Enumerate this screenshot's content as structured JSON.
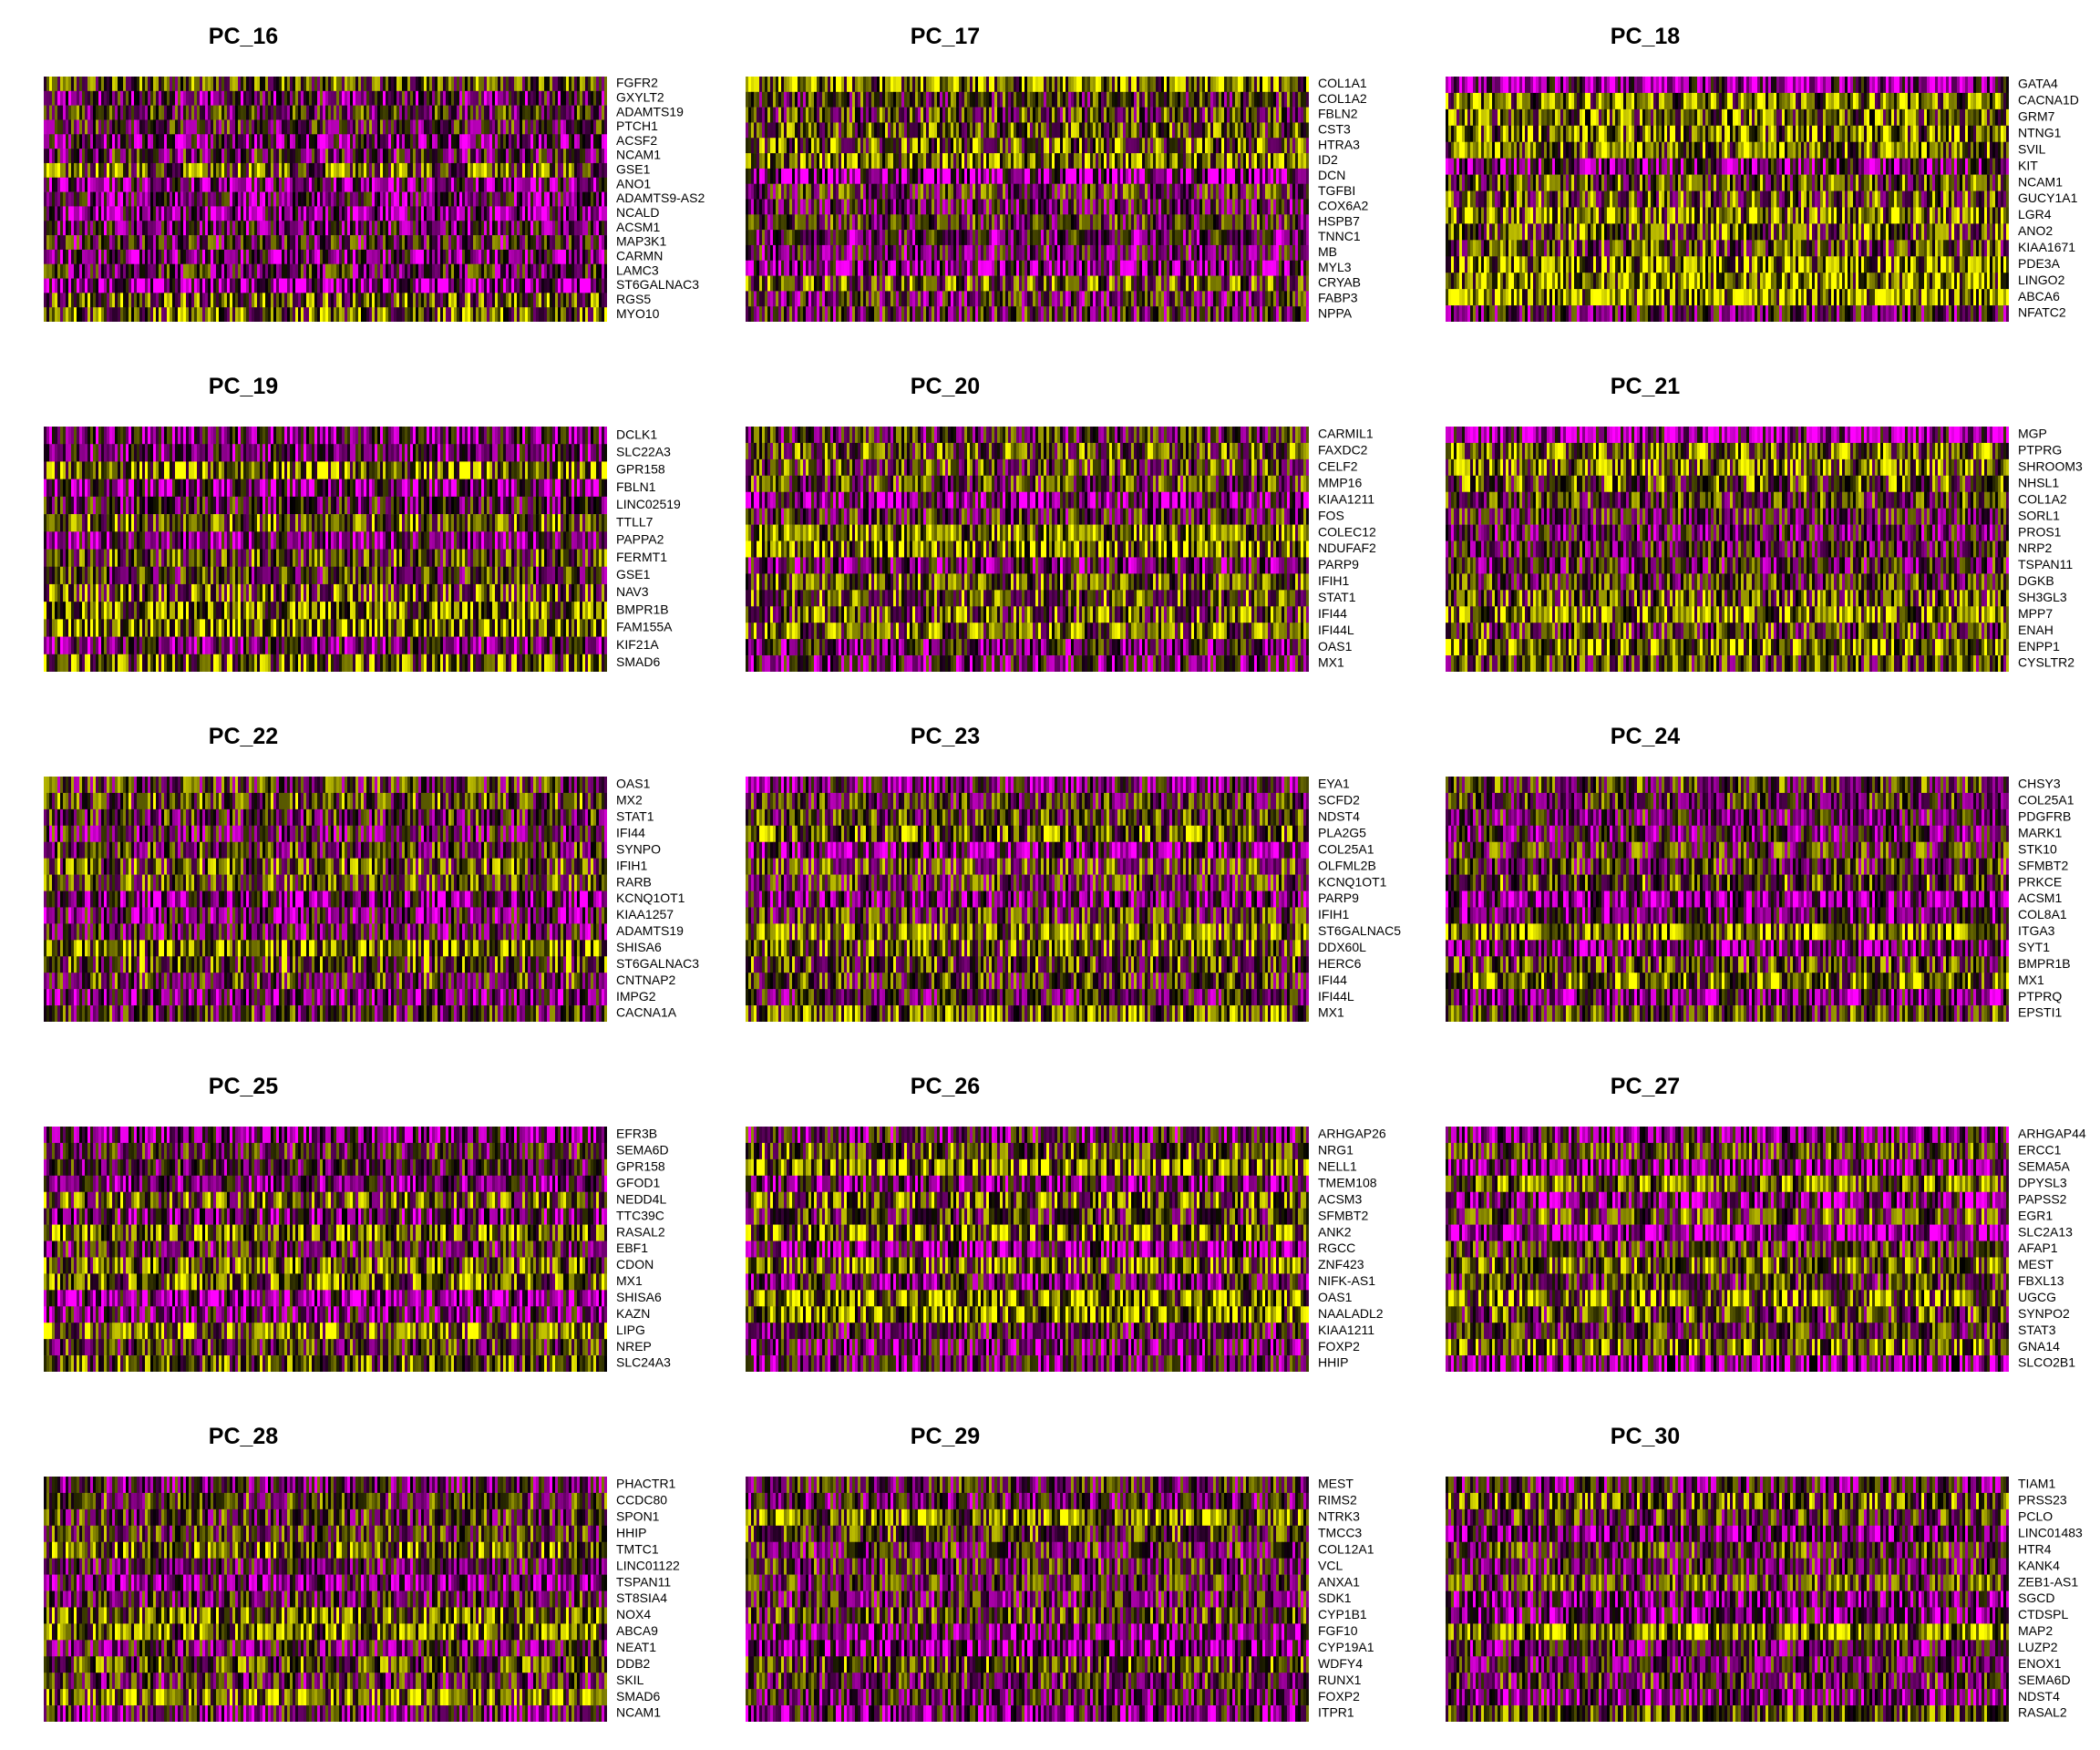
{
  "chart_data": [
    {
      "type": "heatmap",
      "title": "PC_16",
      "rows": [
        "FGFR2",
        "GXYLT2",
        "ADAMTS19",
        "PTCH1",
        "ACSF2",
        "NCAM1",
        "GSE1",
        "ANO1",
        "ADAMTS9-AS2",
        "NCALD",
        "ACSM1",
        "MAP3K1",
        "CARMN",
        "LAMC3",
        "ST6GALNAC3",
        "RGS5",
        "MYO10"
      ]
    },
    {
      "type": "heatmap",
      "title": "PC_17",
      "rows": [
        "COL1A1",
        "COL1A2",
        "FBLN2",
        "CST3",
        "HTRA3",
        "ID2",
        "DCN",
        "TGFBI",
        "COX6A2",
        "HSPB7",
        "TNNC1",
        "MB",
        "MYL3",
        "CRYAB",
        "FABP3",
        "NPPA"
      ]
    },
    {
      "type": "heatmap",
      "title": "PC_18",
      "rows": [
        "GATA4",
        "CACNA1D",
        "GRM7",
        "NTNG1",
        "SVIL",
        "KIT",
        "NCAM1",
        "GUCY1A1",
        "LGR4",
        "ANO2",
        "KIAA1671",
        "PDE3A",
        "LINGO2",
        "ABCA6",
        "NFATC2"
      ]
    },
    {
      "type": "heatmap",
      "title": "PC_19",
      "rows": [
        "DCLK1",
        "SLC22A3",
        "GPR158",
        "FBLN1",
        "LINC02519",
        "TTLL7",
        "PAPPA2",
        "FERMT1",
        "GSE1",
        "NAV3",
        "BMPR1B",
        "FAM155A",
        "KIF21A",
        "SMAD6"
      ]
    },
    {
      "type": "heatmap",
      "title": "PC_20",
      "rows": [
        "CARMIL1",
        "FAXDC2",
        "CELF2",
        "MMP16",
        "KIAA1211",
        "FOS",
        "COLEC12",
        "NDUFAF2",
        "PARP9",
        "IFIH1",
        "STAT1",
        "IFI44",
        "IFI44L",
        "OAS1",
        "MX1"
      ]
    },
    {
      "type": "heatmap",
      "title": "PC_21",
      "rows": [
        "MGP",
        "PTPRG",
        "SHROOM3",
        "NHSL1",
        "COL1A2",
        "SORL1",
        "PROS1",
        "NRP2",
        "TSPAN11",
        "DGKB",
        "SH3GL3",
        "MPP7",
        "ENAH",
        "ENPP1",
        "CYSLTR2"
      ]
    },
    {
      "type": "heatmap",
      "title": "PC_22",
      "rows": [
        "OAS1",
        "MX2",
        "STAT1",
        "IFI44",
        "SYNPO",
        "IFIH1",
        "RARB",
        "KCNQ1OT1",
        "KIAA1257",
        "ADAMTS19",
        "SHISA6",
        "ST6GALNAC3",
        "CNTNAP2",
        "IMPG2",
        "CACNA1A"
      ]
    },
    {
      "type": "heatmap",
      "title": "PC_23",
      "rows": [
        "EYA1",
        "SCFD2",
        "NDST4",
        "PLA2G5",
        "COL25A1",
        "OLFML2B",
        "KCNQ1OT1",
        "PARP9",
        "IFIH1",
        "ST6GALNAC5",
        "DDX60L",
        "HERC6",
        "IFI44",
        "IFI44L",
        "MX1"
      ]
    },
    {
      "type": "heatmap",
      "title": "PC_24",
      "rows": [
        "CHSY3",
        "COL25A1",
        "PDGFRB",
        "MARK1",
        "STK10",
        "SFMBT2",
        "PRKCE",
        "ACSM1",
        "COL8A1",
        "ITGA3",
        "SYT1",
        "BMPR1B",
        "MX1",
        "PTPRQ",
        "EPSTI1"
      ]
    },
    {
      "type": "heatmap",
      "title": "PC_25",
      "rows": [
        "EFR3B",
        "SEMA6D",
        "GPR158",
        "GFOD1",
        "NEDD4L",
        "TTC39C",
        "RASAL2",
        "EBF1",
        "CDON",
        "MX1",
        "SHISA6",
        "KAZN",
        "LIPG",
        "NREP",
        "SLC24A3"
      ]
    },
    {
      "type": "heatmap",
      "title": "PC_26",
      "rows": [
        "ARHGAP26",
        "NRG1",
        "NELL1",
        "TMEM108",
        "ACSM3",
        "SFMBT2",
        "ANK2",
        "RGCC",
        "ZNF423",
        "NIFK-AS1",
        "OAS1",
        "NAALADL2",
        "KIAA1211",
        "FOXP2",
        "HHIP"
      ]
    },
    {
      "type": "heatmap",
      "title": "PC_27",
      "rows": [
        "ARHGAP44",
        "ERCC1",
        "SEMA5A",
        "DPYSL3",
        "PAPSS2",
        "EGR1",
        "SLC2A13",
        "AFAP1",
        "MEST",
        "FBXL13",
        "UGCG",
        "SYNPO2",
        "STAT3",
        "GNA14",
        "SLCO2B1"
      ]
    },
    {
      "type": "heatmap",
      "title": "PC_28",
      "rows": [
        "PHACTR1",
        "CCDC80",
        "SPON1",
        "HHIP",
        "TMTC1",
        "LINC01122",
        "TSPAN11",
        "ST8SIA4",
        "NOX4",
        "ABCA9",
        "NEAT1",
        "DDB2",
        "SKIL",
        "SMAD6",
        "NCAM1"
      ]
    },
    {
      "type": "heatmap",
      "title": "PC_29",
      "rows": [
        "MEST",
        "RIMS2",
        "NTRK3",
        "TMCC3",
        "COL12A1",
        "VCL",
        "ANXA1",
        "SDK1",
        "CYP1B1",
        "FGF10",
        "CYP19A1",
        "WDFY4",
        "RUNX1",
        "FOXP2",
        "ITPR1"
      ]
    },
    {
      "type": "heatmap",
      "title": "PC_30",
      "rows": [
        "TIAM1",
        "PRSS23",
        "PCLO",
        "LINC01483",
        "HTR4",
        "KANK4",
        "ZEB1-AS1",
        "SGCD",
        "CTDSPL",
        "MAP2",
        "LUZP2",
        "ENOX1",
        "SEMA6D",
        "NDST4",
        "RASAL2"
      ]
    }
  ]
}
